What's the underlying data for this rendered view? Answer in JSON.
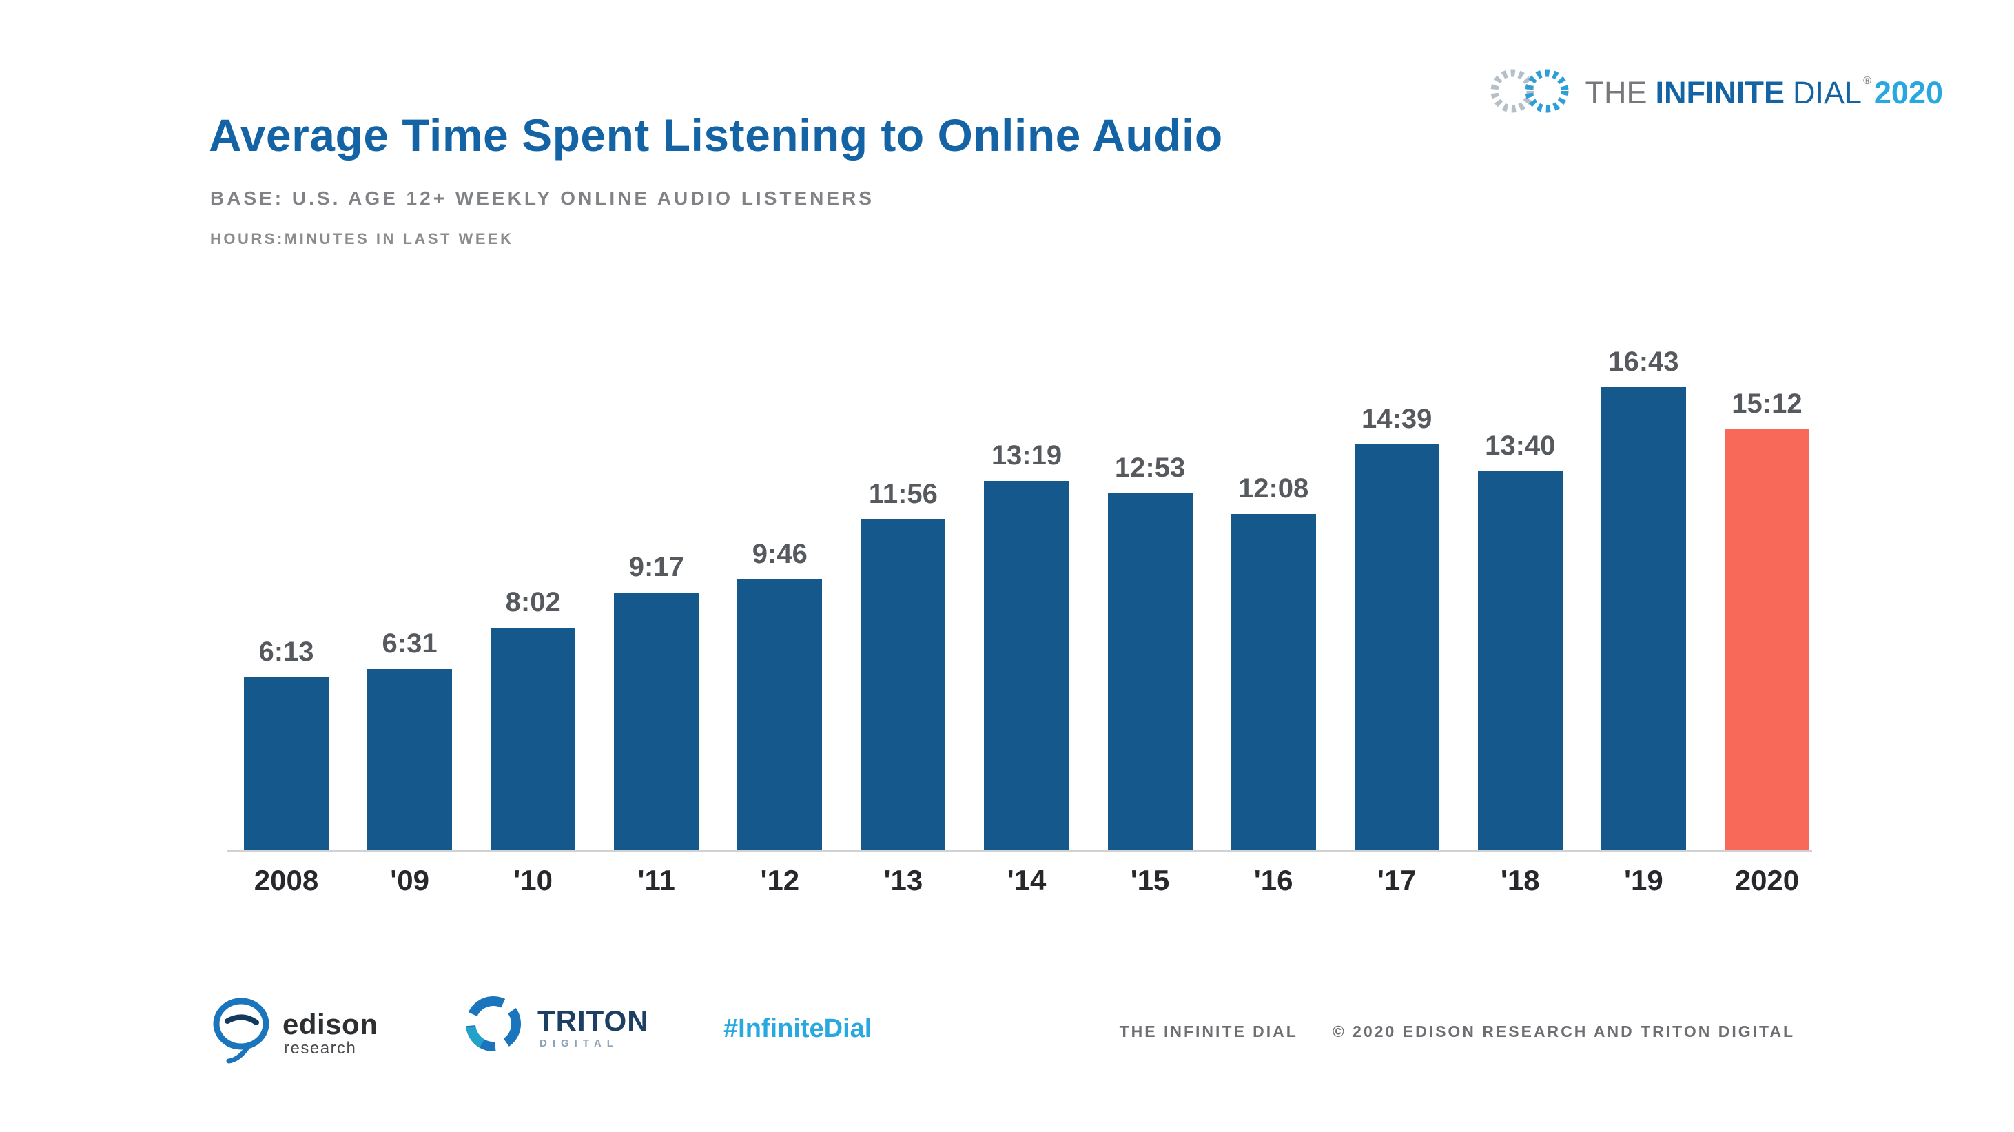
{
  "header": {
    "title": "Average Time Spent Listening to Online Audio",
    "subtitle": "BASE: U.S. AGE 12+ WEEKLY ONLINE AUDIO LISTENERS",
    "unit_note": "HOURS:MINUTES IN LAST WEEK"
  },
  "brand": {
    "the": "THE",
    "infinite": "INFINITE",
    "dial": "DIAL",
    "reg": "®",
    "year": "2020",
    "icon": "infinity-bars-icon",
    "accent_blue": "#1464a5",
    "bright_blue": "#29a8e0"
  },
  "chart_data": {
    "type": "bar",
    "title": "Average Time Spent Listening to Online Audio",
    "categories": [
      "2008",
      "'09",
      "'10",
      "'11",
      "'12",
      "'13",
      "'14",
      "'15",
      "'16",
      "'17",
      "'18",
      "'19",
      "2020"
    ],
    "labels": [
      "6:13",
      "6:31",
      "8:02",
      "9:17",
      "9:46",
      "11:56",
      "13:19",
      "12:53",
      "12:08",
      "14:39",
      "13:40",
      "16:43",
      "15:12"
    ],
    "values_minutes": [
      373,
      391,
      482,
      557,
      586,
      716,
      799,
      773,
      728,
      879,
      820,
      1003,
      912
    ],
    "unit": "hours:minutes in last week",
    "xlabel": "",
    "ylabel": "",
    "ylim_minutes": [
      0,
      1003
    ],
    "grid": false,
    "legend": "none",
    "bar_color": "#15598c",
    "highlight_color": "#f9695a",
    "highlight_index": 12,
    "value_label_color": "#565a5e",
    "axis_line_color": "#cfd1d2"
  },
  "footer": {
    "edison": {
      "name": "edison",
      "sub": "research"
    },
    "triton": {
      "name": "TRITON",
      "sub": "DIGITAL"
    },
    "hashtag": "#InfiniteDial",
    "credit_left": "THE INFINITE DIAL",
    "credit_right": "© 2020 EDISON RESEARCH AND TRITON DIGITAL"
  }
}
